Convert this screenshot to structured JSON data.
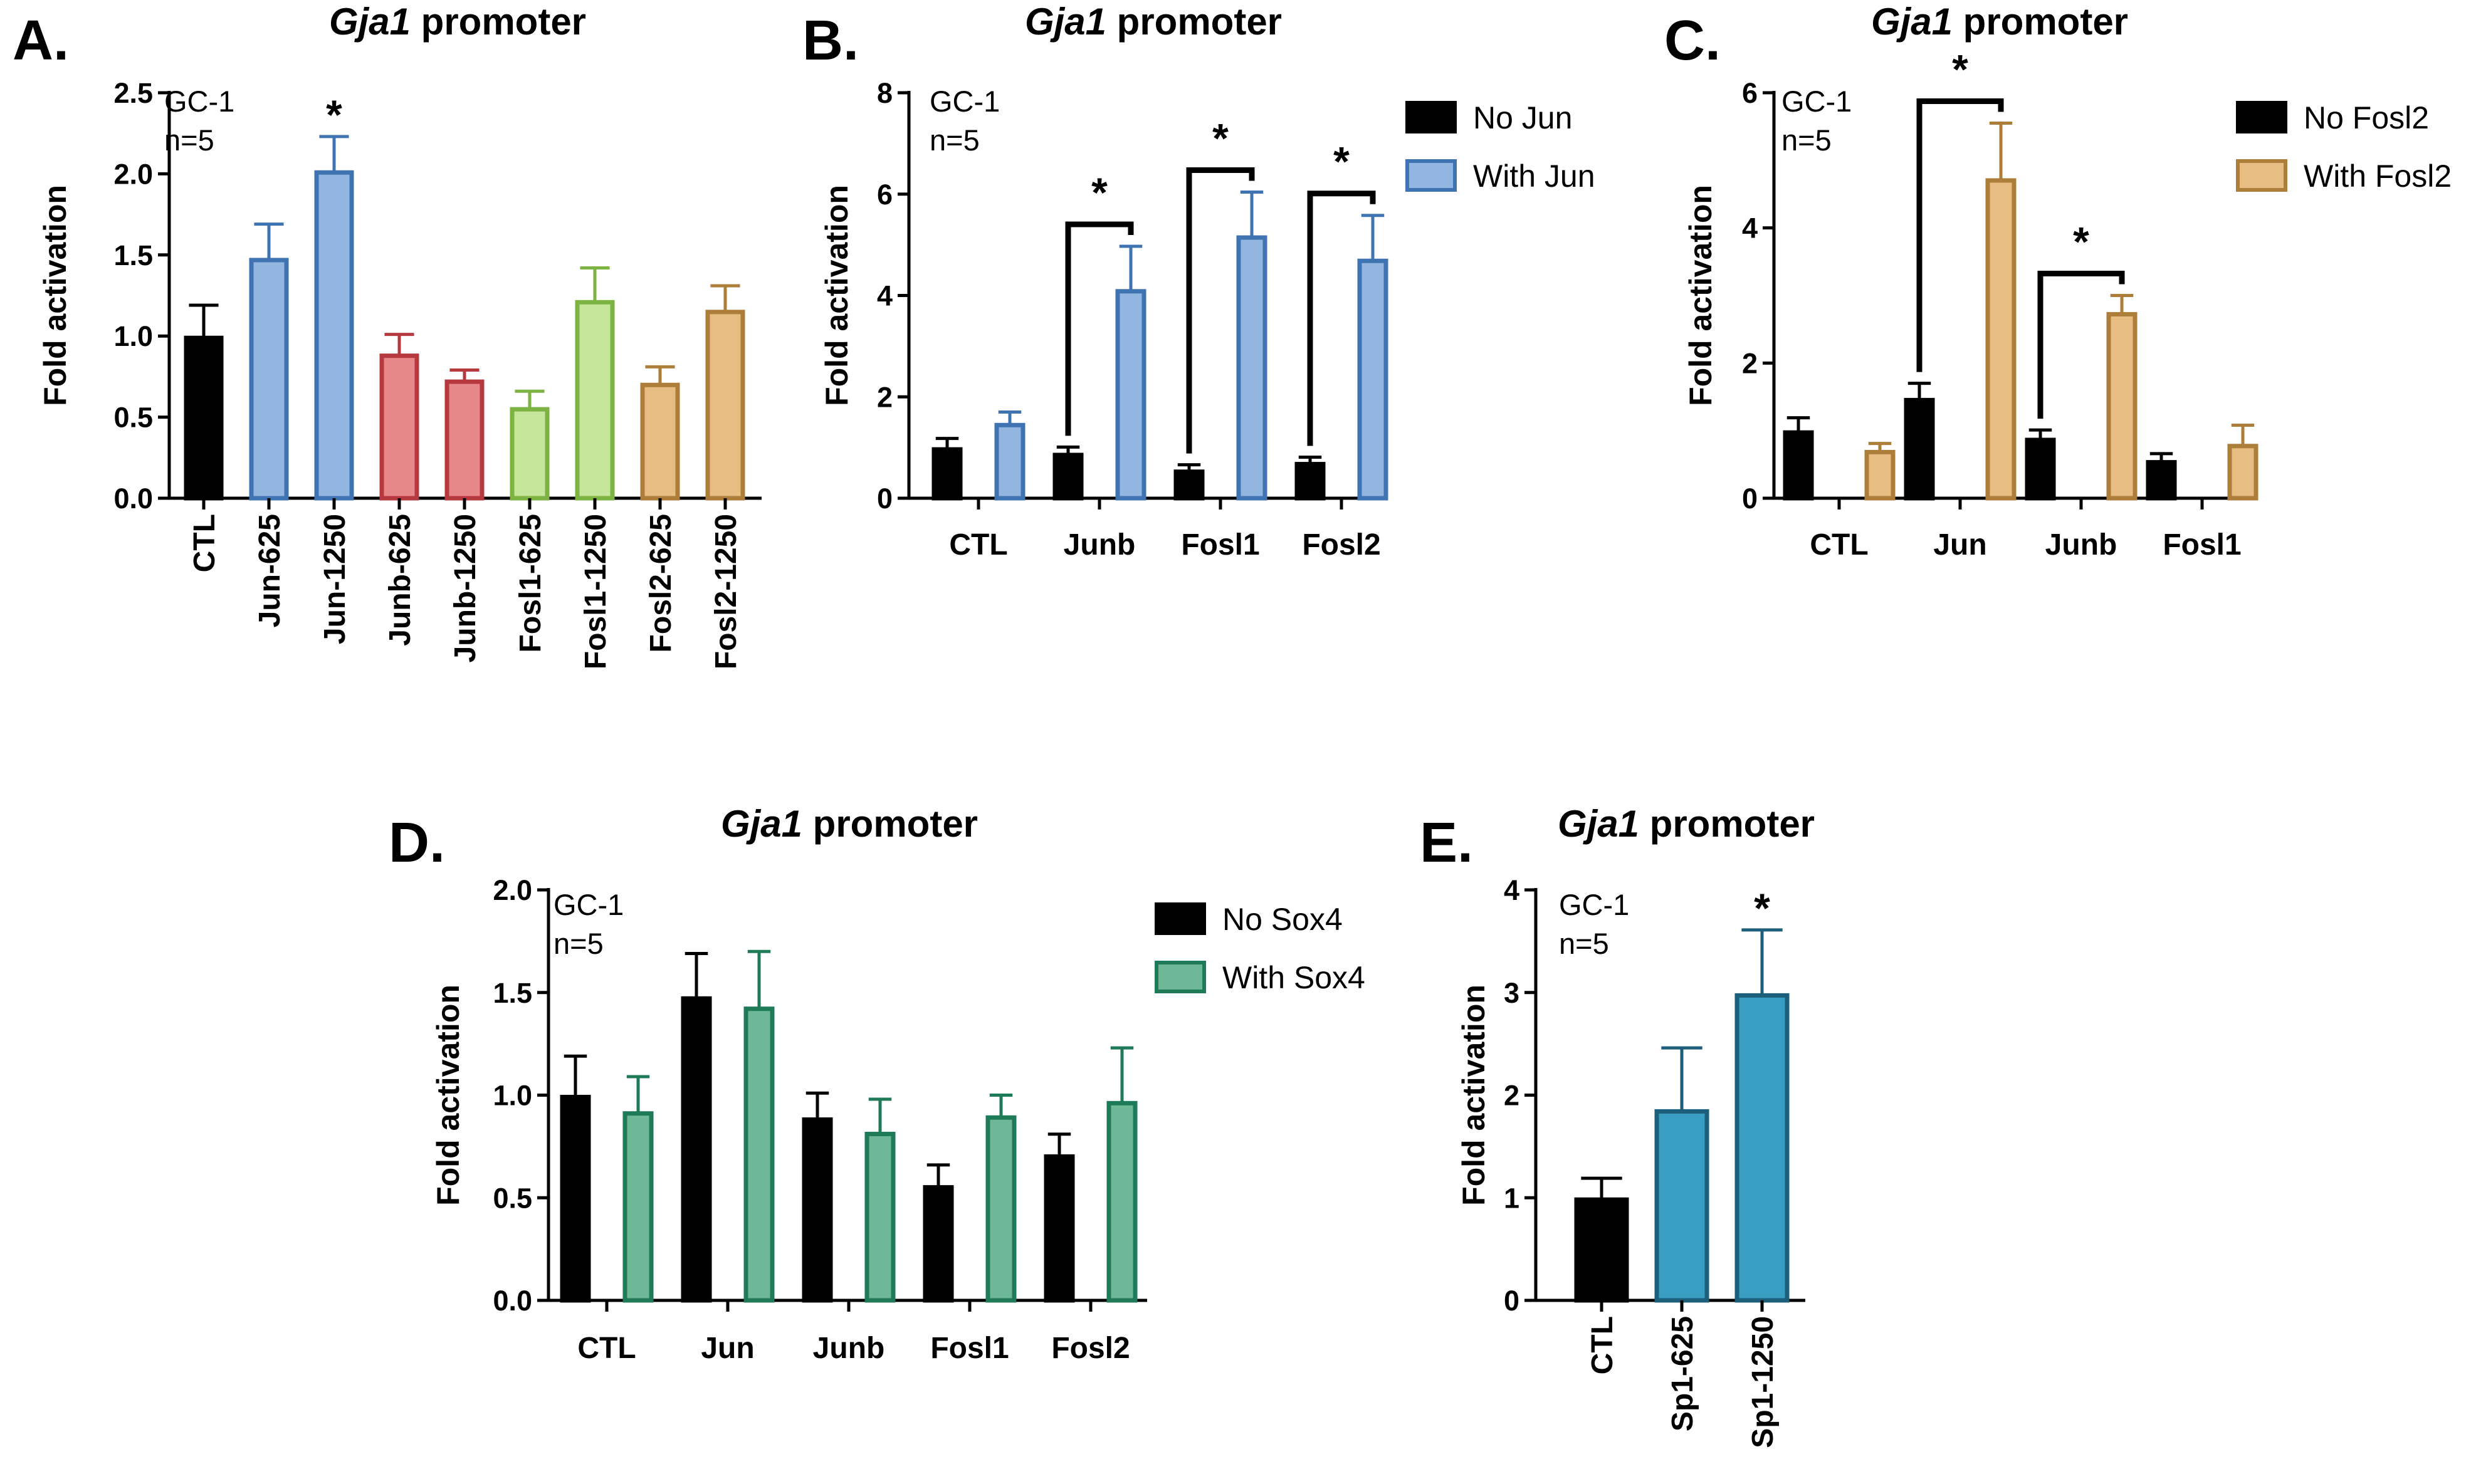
{
  "colors": {
    "black": "#000000",
    "jun": "#3f73b1",
    "jun_fill": "#93b6e0",
    "junb": "#b5393f",
    "junb_fill": "#e6878a",
    "fosl1": "#7cb342",
    "fosl1_fill": "#c6e69b",
    "fosl2": "#ad7d3a",
    "fosl2_fill": "#e8bd84",
    "sox4": "#1f7a58",
    "sox4_fill": "#6fb897",
    "sp1": "#1c5f7a",
    "sp1_fill": "#3a9ec2"
  },
  "chart_data": [
    {
      "panel": "A.",
      "type": "bar",
      "title": {
        "gene": "Gja1",
        "rest": " promoter"
      },
      "ylabel": "Fold activation",
      "ylim": [
        0,
        2.5
      ],
      "yticks": [
        "0.0",
        "0.5",
        "1.0",
        "1.5",
        "2.0",
        "2.5"
      ],
      "ytick_values": [
        0,
        0.5,
        1.0,
        1.5,
        2.0,
        2.5
      ],
      "annotation": [
        "GC-1",
        "n=5"
      ],
      "categories": [
        "CTL",
        "Jun-625",
        "Jun-1250",
        "Junb-625",
        "Junb-1250",
        "Fosl1-625",
        "Fosl1-1250",
        "Fosl2-625",
        "Fosl2-1250"
      ],
      "values": [
        1.0,
        1.48,
        2.02,
        0.89,
        0.73,
        0.56,
        1.22,
        0.71,
        1.16
      ],
      "errors": [
        0.19,
        0.21,
        0.21,
        0.12,
        0.06,
        0.1,
        0.2,
        0.1,
        0.15
      ],
      "significant": [
        false,
        false,
        true,
        false,
        false,
        false,
        false,
        false,
        false
      ],
      "bar_colors": [
        "black",
        "jun",
        "jun",
        "junb",
        "junb",
        "fosl1",
        "fosl1",
        "fosl2",
        "fosl2"
      ]
    },
    {
      "panel": "B.",
      "type": "grouped-bar",
      "title": {
        "gene": "Gja1",
        "rest": " promoter"
      },
      "ylabel": "Fold activation",
      "ylim": [
        0,
        8
      ],
      "yticks": [
        "0",
        "2",
        "4",
        "6",
        "8"
      ],
      "ytick_values": [
        0,
        2,
        4,
        6,
        8
      ],
      "annotation": [
        "GC-1",
        "n=5"
      ],
      "categories": [
        "CTL",
        "Junb",
        "Fosl1",
        "Fosl2"
      ],
      "legend": [
        "No Jun",
        "With Jun"
      ],
      "series": [
        {
          "name": "No Jun",
          "color": "black",
          "values": [
            1.0,
            0.89,
            0.56,
            0.71
          ],
          "errors": [
            0.18,
            0.12,
            0.1,
            0.1
          ]
        },
        {
          "name": "With Jun",
          "color": "jun",
          "values": [
            1.48,
            4.12,
            5.18,
            4.72
          ],
          "errors": [
            0.22,
            0.85,
            0.86,
            0.86
          ]
        }
      ],
      "significant_brackets": [
        1,
        2,
        3
      ]
    },
    {
      "panel": "C.",
      "type": "grouped-bar",
      "title": {
        "gene": "Gja1",
        "rest": " promoter"
      },
      "ylabel": "Fold activation",
      "ylim": [
        0,
        6
      ],
      "yticks": [
        "0",
        "2",
        "4",
        "6"
      ],
      "ytick_values": [
        0,
        2,
        4,
        6
      ],
      "annotation": [
        "GC-1",
        "n=5"
      ],
      "categories": [
        "CTL",
        "Jun",
        "Junb",
        "Fosl1"
      ],
      "legend": [
        "No Fosl2",
        "With Fosl2"
      ],
      "series": [
        {
          "name": "No Fosl2",
          "color": "black",
          "values": [
            1.0,
            1.48,
            0.89,
            0.56
          ],
          "errors": [
            0.19,
            0.22,
            0.12,
            0.1
          ]
        },
        {
          "name": "With Fosl2",
          "color": "fosl2",
          "values": [
            0.71,
            4.73,
            2.75,
            0.8
          ],
          "errors": [
            0.1,
            0.82,
            0.25,
            0.28
          ]
        }
      ],
      "significant_brackets": [
        1,
        2
      ]
    },
    {
      "panel": "D.",
      "type": "grouped-bar",
      "title": {
        "gene": "Gja1",
        "rest": " promoter"
      },
      "ylabel": "Fold activation",
      "ylim": [
        0,
        2.0
      ],
      "yticks": [
        "0.0",
        "0.5",
        "1.0",
        "1.5",
        "2.0"
      ],
      "ytick_values": [
        0,
        0.5,
        1.0,
        1.5,
        2.0
      ],
      "annotation": [
        "GC-1",
        "n=5"
      ],
      "categories": [
        "CTL",
        "Jun",
        "Junb",
        "Fosl1",
        "Fosl2"
      ],
      "legend": [
        "No Sox4",
        "With Sox4"
      ],
      "series": [
        {
          "name": "No Sox4",
          "color": "black",
          "values": [
            1.0,
            1.48,
            0.89,
            0.56,
            0.71
          ],
          "errors": [
            0.19,
            0.21,
            0.12,
            0.1,
            0.1
          ]
        },
        {
          "name": "With Sox4",
          "color": "sox4",
          "values": [
            0.92,
            1.43,
            0.82,
            0.9,
            0.97
          ],
          "errors": [
            0.17,
            0.27,
            0.16,
            0.1,
            0.26
          ]
        }
      ],
      "significant_brackets": []
    },
    {
      "panel": "E.",
      "type": "bar",
      "title": {
        "gene": "Gja1",
        "rest": " promoter"
      },
      "ylabel": "Fold activation",
      "ylim": [
        0,
        4
      ],
      "yticks": [
        "0",
        "1",
        "2",
        "3",
        "4"
      ],
      "ytick_values": [
        0,
        1,
        2,
        3,
        4
      ],
      "annotation": [
        "GC-1",
        "n=5"
      ],
      "categories": [
        "CTL",
        "Sp1-625",
        "Sp1-1250"
      ],
      "values": [
        1.0,
        1.86,
        2.99
      ],
      "errors": [
        0.19,
        0.6,
        0.62
      ],
      "significant": [
        false,
        false,
        true
      ],
      "bar_colors": [
        "black",
        "sp1",
        "sp1"
      ]
    }
  ]
}
